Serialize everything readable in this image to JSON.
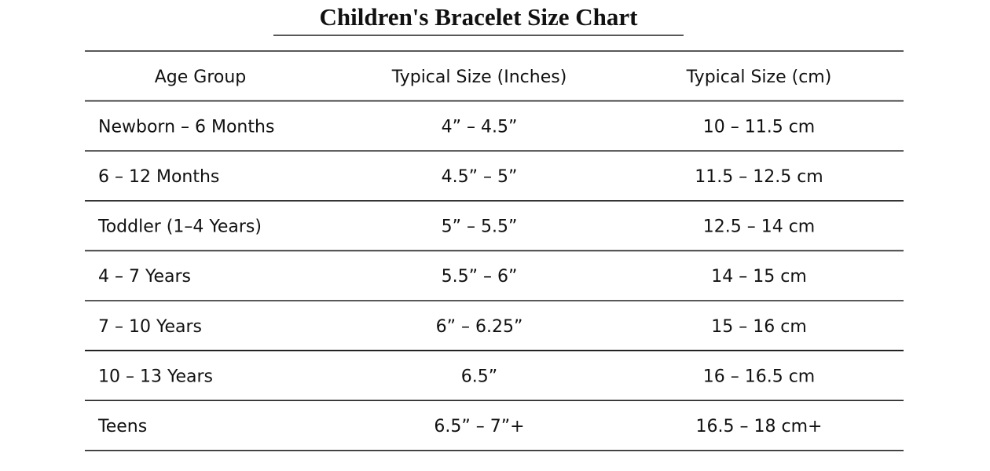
{
  "header": {
    "title": "Children's Bracelet Size Chart"
  },
  "table": {
    "columns": [
      "Age Group",
      "Typical Size (Inches)",
      "Typical Size (cm)"
    ],
    "rows": [
      [
        "Newborn – 6 Months",
        "4” – 4.5”",
        "10 – 11.5 cm"
      ],
      [
        "6 – 12 Months",
        "4.5” – 5”",
        "11.5 – 12.5 cm"
      ],
      [
        "Toddler (1–4 Years)",
        "5” – 5.5”",
        "12.5 – 14 cm"
      ],
      [
        "4 – 7 Years",
        "5.5” – 6”",
        "14 – 15 cm"
      ],
      [
        "7 – 10 Years",
        "6” – 6.25”",
        "15 – 16 cm"
      ],
      [
        "10 – 13 Years",
        "6.5”",
        "16 – 16.5 cm"
      ],
      [
        "Teens",
        "6.5” – 7”+",
        "16.5 – 18 cm+"
      ]
    ]
  }
}
